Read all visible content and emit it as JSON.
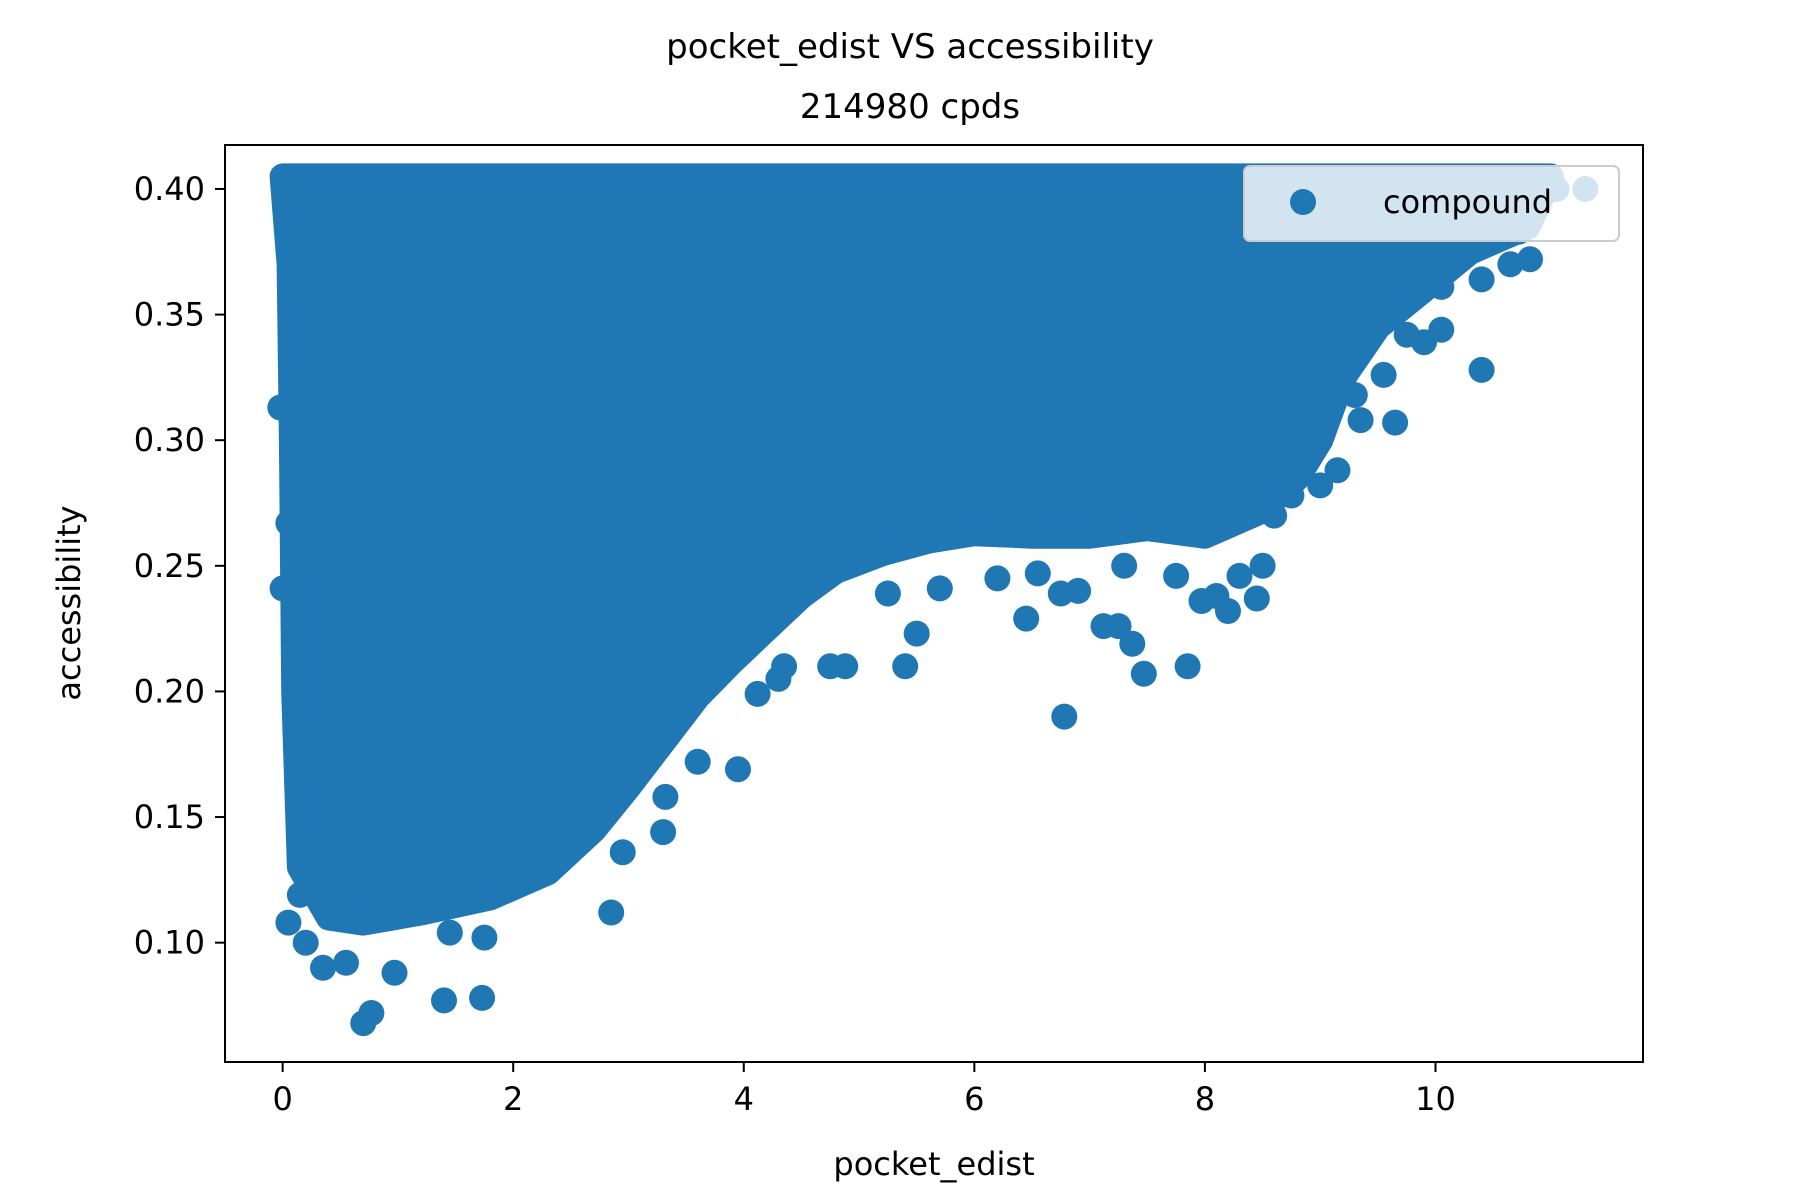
{
  "chart_data": {
    "type": "scatter",
    "title": "pocket_edist VS accessibility",
    "subtitle": "214980 cpds",
    "xlabel": "pocket_edist",
    "ylabel": "accessibility",
    "xlim": [
      -0.5,
      11.8
    ],
    "ylim": [
      0.0525,
      0.4175
    ],
    "xticks": [
      0,
      2,
      4,
      6,
      8,
      10
    ],
    "xtick_labels": [
      "0",
      "2",
      "4",
      "6",
      "8",
      "10"
    ],
    "yticks": [
      0.1,
      0.15,
      0.2,
      0.25,
      0.3,
      0.35,
      0.4
    ],
    "ytick_labels": [
      "0.10",
      "0.15",
      "0.20",
      "0.25",
      "0.30",
      "0.35",
      "0.40"
    ],
    "grid": false,
    "legend_position": "upper right",
    "color": "#1f77b4",
    "series": [
      {
        "name": "compound",
        "dense_region_outline": [
          [
            0.0,
            0.405
          ],
          [
            11.0,
            0.405
          ],
          [
            10.8,
            0.385
          ],
          [
            10.3,
            0.375
          ],
          [
            9.9,
            0.36
          ],
          [
            9.5,
            0.345
          ],
          [
            9.2,
            0.325
          ],
          [
            9.0,
            0.3
          ],
          [
            8.8,
            0.285
          ],
          [
            8.5,
            0.272
          ],
          [
            8.0,
            0.262
          ],
          [
            7.5,
            0.265
          ],
          [
            7.0,
            0.262
          ],
          [
            6.5,
            0.262
          ],
          [
            6.0,
            0.263
          ],
          [
            5.6,
            0.26
          ],
          [
            5.2,
            0.255
          ],
          [
            4.8,
            0.248
          ],
          [
            4.5,
            0.238
          ],
          [
            4.2,
            0.225
          ],
          [
            3.9,
            0.212
          ],
          [
            3.6,
            0.198
          ],
          [
            3.3,
            0.18
          ],
          [
            3.0,
            0.162
          ],
          [
            2.7,
            0.145
          ],
          [
            2.3,
            0.128
          ],
          [
            1.8,
            0.118
          ],
          [
            1.2,
            0.112
          ],
          [
            0.7,
            0.108
          ],
          [
            0.4,
            0.11
          ],
          [
            0.15,
            0.13
          ],
          [
            0.1,
            0.2
          ],
          [
            0.08,
            0.3
          ],
          [
            0.06,
            0.37
          ],
          [
            0.0,
            0.405
          ]
        ],
        "points": [
          [
            0.7,
            0.068
          ],
          [
            0.77,
            0.072
          ],
          [
            1.4,
            0.077
          ],
          [
            1.73,
            0.078
          ],
          [
            0.35,
            0.09
          ],
          [
            0.55,
            0.092
          ],
          [
            0.97,
            0.088
          ],
          [
            0.2,
            0.1
          ],
          [
            1.45,
            0.104
          ],
          [
            1.75,
            0.102
          ],
          [
            2.85,
            0.112
          ],
          [
            0.05,
            0.108
          ],
          [
            0.15,
            0.119
          ],
          [
            0.0,
            0.241
          ],
          [
            -0.02,
            0.313
          ],
          [
            0.05,
            0.267
          ],
          [
            2.95,
            0.136
          ],
          [
            3.3,
            0.144
          ],
          [
            3.32,
            0.158
          ],
          [
            3.6,
            0.172
          ],
          [
            3.95,
            0.169
          ],
          [
            4.12,
            0.199
          ],
          [
            4.3,
            0.205
          ],
          [
            4.35,
            0.21
          ],
          [
            4.75,
            0.21
          ],
          [
            4.88,
            0.21
          ],
          [
            5.4,
            0.21
          ],
          [
            5.5,
            0.223
          ],
          [
            5.25,
            0.239
          ],
          [
            5.7,
            0.241
          ],
          [
            6.45,
            0.229
          ],
          [
            6.78,
            0.19
          ],
          [
            7.12,
            0.226
          ],
          [
            7.25,
            0.226
          ],
          [
            7.37,
            0.219
          ],
          [
            7.47,
            0.207
          ],
          [
            7.85,
            0.21
          ],
          [
            7.97,
            0.236
          ],
          [
            8.1,
            0.238
          ],
          [
            8.2,
            0.232
          ],
          [
            8.45,
            0.237
          ],
          [
            8.3,
            0.246
          ],
          [
            8.5,
            0.25
          ],
          [
            7.75,
            0.246
          ],
          [
            6.9,
            0.24
          ],
          [
            6.75,
            0.239
          ],
          [
            9.0,
            0.282
          ],
          [
            9.15,
            0.288
          ],
          [
            9.65,
            0.307
          ],
          [
            9.35,
            0.308
          ],
          [
            9.55,
            0.326
          ],
          [
            10.4,
            0.328
          ],
          [
            9.75,
            0.342
          ],
          [
            9.9,
            0.339
          ],
          [
            10.05,
            0.344
          ],
          [
            10.4,
            0.364
          ],
          [
            10.65,
            0.37
          ],
          [
            10.82,
            0.372
          ],
          [
            10.05,
            0.361
          ],
          [
            11.05,
            0.4
          ],
          [
            11.3,
            0.4
          ],
          [
            10.4,
            0.4
          ],
          [
            10.72,
            0.383
          ],
          [
            9.6,
            0.355
          ],
          [
            9.3,
            0.318
          ],
          [
            8.6,
            0.27
          ],
          [
            8.75,
            0.278
          ],
          [
            6.2,
            0.245
          ],
          [
            6.55,
            0.247
          ],
          [
            7.3,
            0.25
          ]
        ]
      }
    ]
  }
}
